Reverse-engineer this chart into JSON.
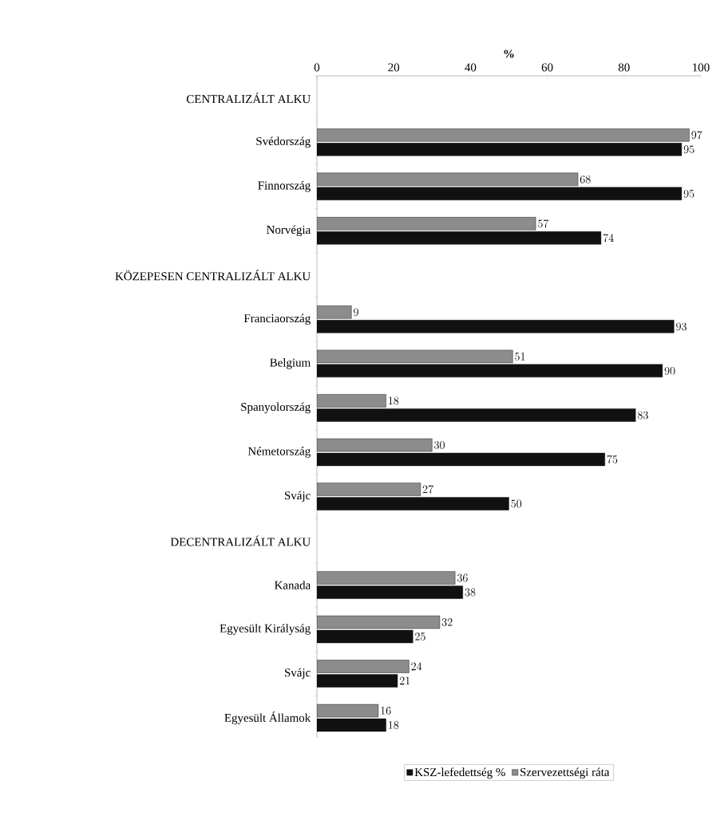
{
  "chart_data": {
    "type": "bar",
    "orientation": "horizontal",
    "xlabel": "%",
    "categories": [
      "CENTRALIZÁLT ALKU",
      "Svédország",
      "Finnország",
      "Norvégia",
      "KÖZEPESEN CENTRALIZÁLT ALKU",
      "Franciaország",
      "Belgium",
      "Spanyolország",
      "Németország",
      "Svájc",
      "DECENTRALIZÁLT ALKU",
      "Kanada",
      "Egyesült Királyság",
      "Svájc",
      "Egyesült Államok"
    ],
    "series": [
      {
        "name": "KSZ-lefedettség %",
        "color": "#111111",
        "values": [
          null,
          95,
          95,
          74,
          null,
          93,
          90,
          83,
          75,
          50,
          null,
          38,
          25,
          21,
          18
        ]
      },
      {
        "name": "Szervezettségi ráta",
        "color": "#8c8c8c",
        "values": [
          null,
          97,
          68,
          57,
          null,
          9,
          51,
          18,
          30,
          27,
          null,
          36,
          32,
          24,
          16
        ]
      }
    ],
    "xlim": [
      0,
      100
    ],
    "xticks": [
      0,
      20,
      40,
      60,
      80,
      100
    ],
    "data_labels": true,
    "legend": "bottom"
  }
}
